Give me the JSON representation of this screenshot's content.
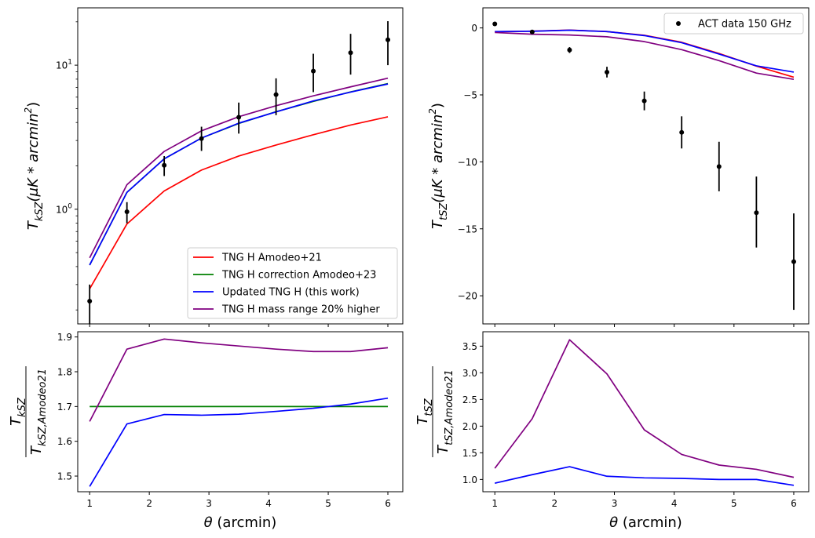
{
  "chart_data": [
    {
      "id": "top-left",
      "type": "line",
      "yscale": "log",
      "xlim": [
        0.8,
        6.25
      ],
      "ylim": [
        0.16,
        25
      ],
      "xlabel": "",
      "ylabel": "T_{kSZ}(μK * arcmin^2)",
      "yticks": [
        {
          "value": 1,
          "label": "10^0"
        },
        {
          "value": 10,
          "label": "10^1"
        }
      ],
      "xticks": [
        1,
        2,
        3,
        4,
        5,
        6
      ],
      "legend_position": "lower-right",
      "x": [
        1.0,
        1.625,
        2.25,
        2.875,
        3.5,
        4.125,
        4.75,
        5.375,
        6.0
      ],
      "series": [
        {
          "name": "TNG H Amodeo+21",
          "color": "#ff0000",
          "values": [
            0.28,
            0.79,
            1.34,
            1.87,
            2.34,
            2.79,
            3.29,
            3.84,
            4.38
          ]
        },
        {
          "name": "TNG H correction Amodeo+23",
          "color": "#008000",
          "values": [
            0.41,
            1.31,
            2.24,
            3.12,
            3.94,
            4.75,
            5.6,
            6.52,
            7.45
          ]
        },
        {
          "name": "Updated TNG H (this work)",
          "color": "#0000ff",
          "values": [
            0.41,
            1.31,
            2.24,
            3.12,
            3.96,
            4.74,
            5.65,
            6.5,
            7.4
          ]
        },
        {
          "name": "TNG H mass range 20% higher",
          "color": "#800080",
          "values": [
            0.46,
            1.48,
            2.52,
            3.5,
            4.39,
            5.23,
            6.13,
            7.07,
            8.12
          ]
        }
      ],
      "points": {
        "name": "ACT data",
        "values": [
          0.23,
          0.96,
          2.02,
          3.09,
          4.35,
          6.25,
          9.1,
          12.2,
          15.0
        ],
        "err_low": [
          0.07,
          0.16,
          0.32,
          0.55,
          1.0,
          1.75,
          2.6,
          3.6,
          5.0
        ],
        "err_high": [
          0.07,
          0.16,
          0.32,
          0.65,
          1.15,
          1.85,
          2.9,
          4.3,
          5.2
        ]
      }
    },
    {
      "id": "top-right",
      "type": "line",
      "yscale": "linear",
      "xlim": [
        0.8,
        6.25
      ],
      "ylim": [
        -22.1,
        1.5
      ],
      "xlabel": "",
      "ylabel": "T_{tSZ}(μK * arcmin^2)",
      "yticks": [
        {
          "value": 0,
          "label": "0"
        },
        {
          "value": -5,
          "label": "−5"
        },
        {
          "value": -10,
          "label": "−10"
        },
        {
          "value": -15,
          "label": "−15"
        },
        {
          "value": -20,
          "label": "−20"
        }
      ],
      "xticks": [
        1,
        2,
        3,
        4,
        5,
        6
      ],
      "legend_position": "upper-right",
      "x": [
        1.0,
        1.625,
        2.25,
        2.875,
        3.5,
        4.125,
        4.75,
        5.375,
        6.0
      ],
      "series": [
        {
          "name": "TNG H Amodeo+21",
          "color": "#ff0000",
          "values": [
            -0.28,
            -0.24,
            -0.16,
            -0.27,
            -0.55,
            -1.07,
            -1.91,
            -2.85,
            -3.68
          ]
        },
        {
          "name": "Updated TNG H (this work)",
          "color": "#0000ff",
          "values": [
            -0.27,
            -0.25,
            -0.17,
            -0.27,
            -0.57,
            -1.1,
            -1.95,
            -2.83,
            -3.3
          ]
        },
        {
          "name": "TNG H mass range 20% higher",
          "color": "#800080",
          "values": [
            -0.34,
            -0.47,
            -0.53,
            -0.66,
            -1.02,
            -1.62,
            -2.44,
            -3.37,
            -3.84
          ]
        }
      ],
      "points": {
        "name": "ACT data 150 GHz",
        "values": [
          0.3,
          -0.3,
          -1.65,
          -3.3,
          -5.45,
          -7.8,
          -10.35,
          -13.8,
          -17.45
        ],
        "err_low": [
          0.1,
          0.15,
          0.22,
          0.4,
          0.7,
          1.2,
          1.85,
          2.6,
          3.6
        ],
        "err_high": [
          0.1,
          0.15,
          0.22,
          0.4,
          0.7,
          1.2,
          1.85,
          2.7,
          3.6
        ]
      }
    },
    {
      "id": "bottom-left",
      "type": "line",
      "yscale": "linear",
      "xlim": [
        0.8,
        6.25
      ],
      "ylim": [
        1.455,
        1.915
      ],
      "xlabel": "θ (arcmin)",
      "ylabel": "T_{kSZ} / T_{kSZ,Amodeo21}",
      "yticks": [
        {
          "value": 1.5,
          "label": "1.5"
        },
        {
          "value": 1.6,
          "label": "1.6"
        },
        {
          "value": 1.7,
          "label": "1.7"
        },
        {
          "value": 1.8,
          "label": "1.8"
        },
        {
          "value": 1.9,
          "label": "1.9"
        }
      ],
      "xticks": [
        1,
        2,
        3,
        4,
        5,
        6
      ],
      "x": [
        1.0,
        1.625,
        2.25,
        2.875,
        3.5,
        4.125,
        4.75,
        5.375,
        6.0
      ],
      "series": [
        {
          "name": "TNG H correction Amodeo+23",
          "color": "#008000",
          "values": [
            1.7,
            1.7,
            1.7,
            1.7,
            1.7,
            1.7,
            1.7,
            1.7,
            1.7
          ]
        },
        {
          "name": "Updated TNG H (this work)",
          "color": "#0000ff",
          "values": [
            1.47,
            1.65,
            1.677,
            1.675,
            1.678,
            1.686,
            1.695,
            1.707,
            1.724
          ]
        },
        {
          "name": "TNG H mass range 20% higher",
          "color": "#800080",
          "values": [
            1.657,
            1.865,
            1.894,
            1.883,
            1.874,
            1.865,
            1.858,
            1.858,
            1.869
          ]
        }
      ]
    },
    {
      "id": "bottom-right",
      "type": "line",
      "yscale": "linear",
      "xlim": [
        0.8,
        6.25
      ],
      "ylim": [
        0.77,
        3.77
      ],
      "xlabel": "θ (arcmin)",
      "ylabel": "T_{tSZ} / T_{tSZ,Amodeo21}",
      "yticks": [
        {
          "value": 1.0,
          "label": "1.0"
        },
        {
          "value": 1.5,
          "label": "1.5"
        },
        {
          "value": 2.0,
          "label": "2.0"
        },
        {
          "value": 2.5,
          "label": "2.5"
        },
        {
          "value": 3.0,
          "label": "3.0"
        },
        {
          "value": 3.5,
          "label": "3.5"
        }
      ],
      "xticks": [
        1,
        2,
        3,
        4,
        5,
        6
      ],
      "x": [
        1.0,
        1.625,
        2.25,
        2.875,
        3.5,
        4.125,
        4.75,
        5.375,
        6.0
      ],
      "series": [
        {
          "name": "Updated TNG H (this work)",
          "color": "#0000ff",
          "values": [
            0.93,
            1.09,
            1.24,
            1.06,
            1.03,
            1.02,
            1.0,
            1.0,
            0.89
          ]
        },
        {
          "name": "TNG H mass range 20% higher",
          "color": "#800080",
          "values": [
            1.21,
            2.14,
            3.62,
            2.98,
            1.93,
            1.47,
            1.27,
            1.19,
            1.04
          ]
        }
      ]
    }
  ],
  "legends": {
    "top_left": [
      "TNG H Amodeo+21",
      "TNG H correction Amodeo+23",
      "Updated TNG H (this work)",
      "TNG H mass range 20% higher"
    ],
    "top_right": [
      "ACT data 150 GHz"
    ]
  }
}
